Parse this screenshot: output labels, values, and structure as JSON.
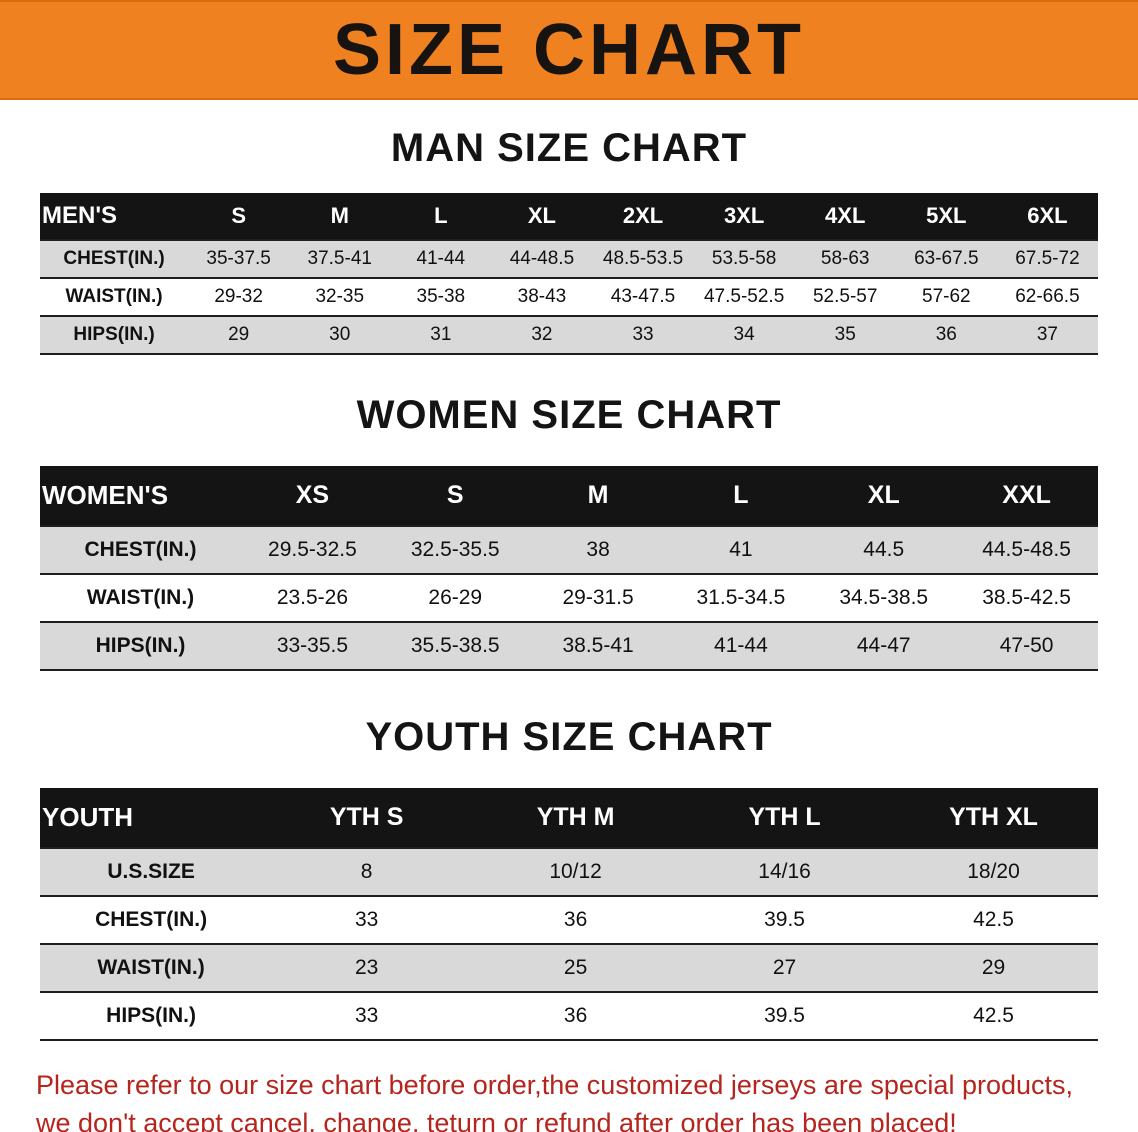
{
  "banner": {
    "title": "SIZE CHART",
    "bg_color": "#f08120",
    "text_color": "#171310"
  },
  "sections": [
    {
      "heading": "MAN SIZE CHART"
    },
    {
      "heading": "WOMEN SIZE CHART"
    },
    {
      "heading": "YOUTH SIZE CHART"
    }
  ],
  "chart_data": [
    {
      "type": "table",
      "title": "MAN SIZE CHART",
      "columns": [
        "MEN'S",
        "S",
        "M",
        "L",
        "XL",
        "2XL",
        "3XL",
        "4XL",
        "5XL",
        "6XL"
      ],
      "rows": [
        [
          "CHEST(IN.)",
          "35-37.5",
          "37.5-41",
          "41-44",
          "44-48.5",
          "48.5-53.5",
          "53.5-58",
          "58-63",
          "63-67.5",
          "67.5-72"
        ],
        [
          "WAIST(IN.)",
          "29-32",
          "32-35",
          "35-38",
          "38-43",
          "43-47.5",
          "47.5-52.5",
          "52.5-57",
          "57-62",
          "62-66.5"
        ],
        [
          "HIPS(IN.)",
          "29",
          "30",
          "31",
          "32",
          "33",
          "34",
          "35",
          "36",
          "37"
        ]
      ]
    },
    {
      "type": "table",
      "title": "WOMEN SIZE CHART",
      "columns": [
        "WOMEN'S",
        "XS",
        "S",
        "M",
        "L",
        "XL",
        "XXL"
      ],
      "rows": [
        [
          "CHEST(IN.)",
          "29.5-32.5",
          "32.5-35.5",
          "38",
          "41",
          "44.5",
          "44.5-48.5"
        ],
        [
          "WAIST(IN.)",
          "23.5-26",
          "26-29",
          "29-31.5",
          "31.5-34.5",
          "34.5-38.5",
          "38.5-42.5"
        ],
        [
          "HIPS(IN.)",
          "33-35.5",
          "35.5-38.5",
          "38.5-41",
          "41-44",
          "44-47",
          "47-50"
        ]
      ]
    },
    {
      "type": "table",
      "title": "YOUTH SIZE CHART",
      "columns": [
        "YOUTH",
        "YTH S",
        "YTH M",
        "YTH L",
        "YTH XL"
      ],
      "rows": [
        [
          "U.S.SIZE",
          "8",
          "10/12",
          "14/16",
          "18/20"
        ],
        [
          "CHEST(IN.)",
          "33",
          "36",
          "39.5",
          "42.5"
        ],
        [
          "WAIST(IN.)",
          "23",
          "25",
          "27",
          "29"
        ],
        [
          "HIPS(IN.)",
          "33",
          "36",
          "39.5",
          "42.5"
        ]
      ]
    }
  ],
  "footer": {
    "line1": "Please refer to our size chart before order,the customized jerseys are special products,",
    "line2": "we don't accept cancel, change, teturn or refund after order has been placed!",
    "text_color": "#b5251d"
  }
}
